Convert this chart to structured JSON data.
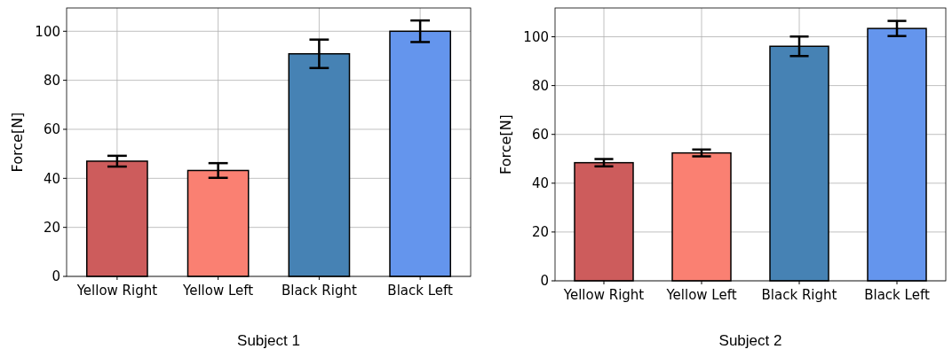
{
  "chart_data": [
    {
      "type": "bar",
      "title": "Subject 1",
      "ylabel": "Force[N]",
      "categories": [
        "Yellow Right",
        "Yellow Left",
        "Black Right",
        "Black Left"
      ],
      "values": [
        47.0,
        43.2,
        90.8,
        100.0
      ],
      "errors": [
        2.2,
        3.0,
        5.8,
        4.4
      ],
      "colors": [
        "#cd5c5c",
        "#fa8072",
        "#4682b4",
        "#6495ed"
      ],
      "ylim": [
        0,
        109.5
      ],
      "yticks": [
        0,
        20,
        40,
        60,
        80,
        100
      ],
      "grid": true
    },
    {
      "type": "bar",
      "title": "Subject 2",
      "ylabel": "Force[N]",
      "categories": [
        "Yellow Right",
        "Yellow Left",
        "Black Right",
        "Black Left"
      ],
      "values": [
        48.4,
        52.4,
        96.1,
        103.4
      ],
      "errors": [
        1.5,
        1.4,
        4.0,
        3.1
      ],
      "colors": [
        "#cd5c5c",
        "#fa8072",
        "#4682b4",
        "#6495ed"
      ],
      "ylim": [
        0,
        111.8
      ],
      "yticks": [
        0,
        20,
        40,
        60,
        80,
        100
      ],
      "grid": true
    }
  ]
}
